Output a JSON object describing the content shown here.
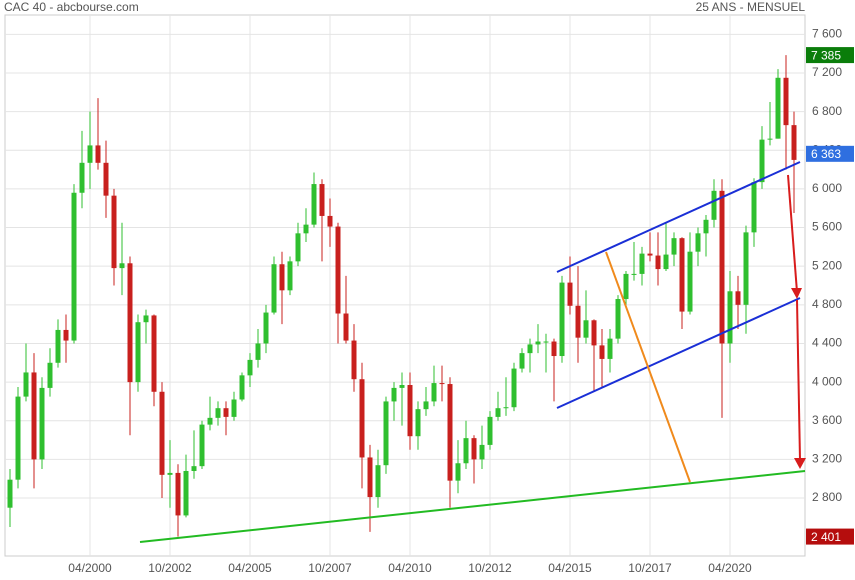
{
  "chart_data": {
    "type": "candlestick",
    "title": "CAC 40 - abcbourse.com",
    "subtitle": "25 ANS - MENSUEL",
    "up_color": "#2fbf2f",
    "down_color": "#c8201e",
    "x": [
      "10/1997",
      "01/1998",
      "04/1998",
      "07/1998",
      "10/1998",
      "01/1999",
      "04/1999",
      "07/1999",
      "10/1999",
      "01/2000",
      "04/2000",
      "07/2000",
      "10/2000",
      "01/2001",
      "04/2001",
      "07/2001",
      "10/2001",
      "01/2002",
      "04/2002",
      "07/2002",
      "10/2002",
      "01/2003",
      "04/2003",
      "07/2003",
      "10/2003",
      "01/2004",
      "04/2004",
      "07/2004",
      "10/2004",
      "01/2005",
      "04/2005",
      "07/2005",
      "10/2005",
      "01/2006",
      "04/2006",
      "07/2006",
      "10/2006",
      "01/2007",
      "04/2007",
      "07/2007",
      "10/2007",
      "01/2008",
      "04/2008",
      "07/2008",
      "10/2008",
      "01/2009",
      "04/2009",
      "07/2009",
      "10/2009",
      "01/2010",
      "04/2010",
      "07/2010",
      "10/2010",
      "01/2011",
      "04/2011",
      "07/2011",
      "10/2011",
      "01/2012",
      "04/2012",
      "07/2012",
      "10/2012",
      "01/2013",
      "04/2013",
      "07/2013",
      "10/2013",
      "01/2014",
      "04/2014",
      "07/2014",
      "10/2014",
      "01/2015",
      "04/2015",
      "07/2015",
      "10/2015",
      "01/2016",
      "04/2016",
      "07/2016",
      "10/2016",
      "01/2017",
      "04/2017",
      "07/2017",
      "10/2017",
      "01/2018",
      "04/2018",
      "07/2018",
      "10/2018",
      "01/2019",
      "04/2019",
      "07/2019",
      "10/2019",
      "01/2020",
      "04/2020",
      "07/2020",
      "10/2020",
      "01/2021",
      "04/2021",
      "07/2021",
      "10/2021",
      "01/2022",
      "04/2022"
    ],
    "open": [
      2700,
      2990,
      3850,
      4100,
      3200,
      3940,
      4200,
      4540,
      4430,
      5960,
      6270,
      6450,
      6270,
      5930,
      5180,
      5230,
      4000,
      4620,
      4690,
      3900,
      3040,
      3060,
      2620,
      3080,
      3130,
      3560,
      3630,
      3730,
      3640,
      3820,
      4070,
      4230,
      4400,
      4720,
      5220,
      4950,
      5250,
      5540,
      5630,
      6050,
      5720,
      5610,
      4710,
      4430,
      4030,
      3220,
      2810,
      3140,
      3800,
      3940,
      3970,
      3440,
      3720,
      3800,
      3990,
      3980,
      2980,
      3160,
      3420,
      3200,
      3350,
      3640,
      3730,
      3740,
      4140,
      4300,
      4390,
      4420,
      4420,
      4270,
      5030,
      4790,
      4460,
      4640,
      4380,
      4240,
      4450,
      4860,
      5120,
      5120,
      5330,
      5310,
      5170,
      5320,
      5490,
      4730,
      5350,
      5540,
      5680,
      5980,
      4400,
      4940,
      4800,
      5550,
      6070,
      6510,
      6520,
      7150,
      6660
    ],
    "high": [
      3100,
      3950,
      4400,
      4300,
      4050,
      4350,
      4650,
      4700,
      6050,
      6600,
      6800,
      6940,
      6500,
      6000,
      5650,
      5300,
      4700,
      4750,
      4700,
      4000,
      3400,
      3150,
      3250,
      3500,
      3600,
      3850,
      3800,
      3800,
      3900,
      4100,
      4300,
      4550,
      4800,
      5300,
      5350,
      5300,
      5650,
      5800,
      6170,
      6100,
      5900,
      5650,
      5100,
      4600,
      4200,
      3350,
      3300,
      3850,
      4000,
      4100,
      4100,
      3800,
      3950,
      4170,
      4170,
      4050,
      3400,
      3600,
      3450,
      3550,
      3700,
      3900,
      4050,
      4200,
      4350,
      4450,
      4600,
      4500,
      4450,
      5100,
      5300,
      5200,
      4950,
      4650,
      4550,
      4550,
      4900,
      5150,
      5450,
      5400,
      5550,
      5550,
      5650,
      5550,
      5500,
      5550,
      5600,
      5730,
      6100,
      6100,
      5150,
      5100,
      5620,
      6110,
      6650,
      6900,
      7240,
      7385,
      6800
    ],
    "low": [
      2500,
      2900,
      3800,
      2900,
      3100,
      3850,
      4150,
      4200,
      4400,
      5800,
      6000,
      6200,
      5700,
      5000,
      4900,
      3450,
      3900,
      4400,
      3750,
      2800,
      2700,
      2400,
      2600,
      3000,
      3100,
      3500,
      3550,
      3450,
      3600,
      3800,
      3950,
      4150,
      4300,
      4700,
      4600,
      4900,
      5200,
      5450,
      5600,
      5250,
      5400,
      4400,
      4400,
      3900,
      2900,
      2450,
      2700,
      3050,
      3600,
      3550,
      3300,
      3300,
      3650,
      3750,
      3800,
      2700,
      2850,
      3100,
      2950,
      3100,
      3300,
      3600,
      3650,
      3700,
      4100,
      4100,
      4300,
      4100,
      3800,
      4200,
      4700,
      4200,
      4400,
      3900,
      3950,
      4100,
      4400,
      4800,
      5050,
      5000,
      5250,
      5000,
      5150,
      5200,
      4550,
      4700,
      5200,
      5300,
      5600,
      3630,
      4200,
      4550,
      4500,
      5400,
      6000,
      6450,
      6520,
      6200,
      5750
    ],
    "close": [
      2990,
      3850,
      4100,
      3200,
      3940,
      4200,
      4540,
      4430,
      5960,
      6270,
      6450,
      6270,
      5930,
      5180,
      5230,
      4000,
      4620,
      4690,
      3900,
      3040,
      3060,
      2620,
      3080,
      3130,
      3560,
      3630,
      3730,
      3640,
      3820,
      4070,
      4230,
      4400,
      4720,
      5220,
      4950,
      5250,
      5540,
      5630,
      6050,
      5720,
      5610,
      4710,
      4430,
      4030,
      3220,
      2810,
      3140,
      3800,
      3940,
      3970,
      3440,
      3720,
      3800,
      3990,
      3980,
      2980,
      3160,
      3420,
      3200,
      3350,
      3640,
      3730,
      3740,
      4140,
      4300,
      4390,
      4420,
      4420,
      4270,
      5030,
      4790,
      4460,
      4640,
      4380,
      4240,
      4450,
      4860,
      5120,
      5120,
      5330,
      5310,
      5170,
      5320,
      5490,
      4730,
      5350,
      5540,
      5680,
      5980,
      4400,
      4940,
      4800,
      5550,
      6070,
      6510,
      6520,
      7150,
      6660,
      6300
    ],
    "xticks": [
      "04/2000",
      "10/2002",
      "04/2005",
      "10/2007",
      "04/2010",
      "10/2012",
      "04/2015",
      "10/2017",
      "04/2020"
    ],
    "ylim": [
      2200,
      7800
    ],
    "yticks": [
      {
        "value": 2800,
        "label": "2 800"
      },
      {
        "value": 3200,
        "label": "3 200"
      },
      {
        "value": 3600,
        "label": "3 600"
      },
      {
        "value": 4000,
        "label": "4 000"
      },
      {
        "value": 4400,
        "label": "4 400"
      },
      {
        "value": 4800,
        "label": "4 800"
      },
      {
        "value": 5200,
        "label": "5 200"
      },
      {
        "value": 5600,
        "label": "5 600"
      },
      {
        "value": 6000,
        "label": "6 000"
      },
      {
        "value": 6400,
        "label": "6 400"
      },
      {
        "value": 6800,
        "label": "6 800"
      },
      {
        "value": 7200,
        "label": "7 200"
      },
      {
        "value": 7600,
        "label": "7 600"
      }
    ],
    "grid": true,
    "badges": [
      {
        "value": 7385,
        "label": "7 385",
        "color": "#0a7d0a"
      },
      {
        "value": 6363,
        "label": "6 363",
        "color": "#2f6fe0"
      },
      {
        "value": 2401,
        "label": "2 401",
        "color": "#b50d0d"
      }
    ]
  }
}
